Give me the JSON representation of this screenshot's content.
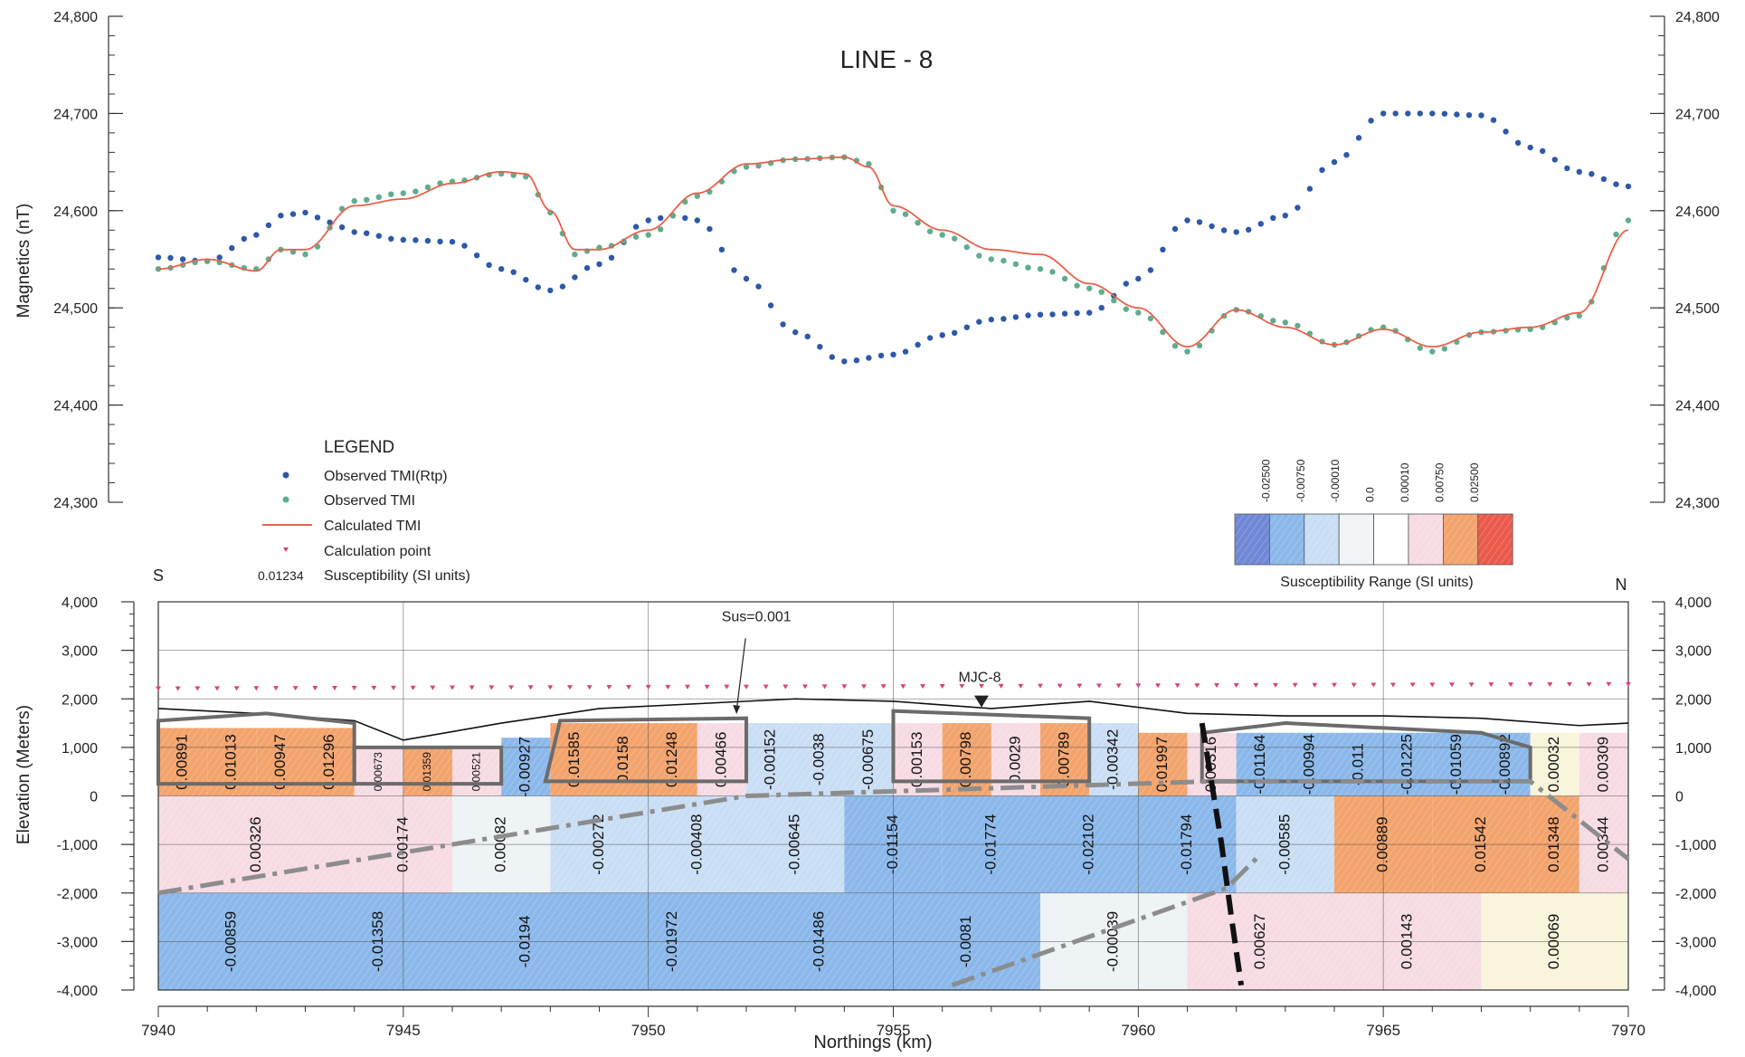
{
  "chart_data": [
    {
      "type": "line",
      "title": "LINE - 8",
      "ylabel": "Magnetics (nT)",
      "xlim": [
        7940,
        7970
      ],
      "ylim": [
        24300,
        24800
      ],
      "yticks": [
        24300,
        24400,
        24500,
        24600,
        24700,
        24800
      ],
      "ytick_labels": [
        "24,300",
        "24,400",
        "24,500",
        "24,600",
        "24,700",
        "24,800"
      ],
      "grid": false,
      "series": [
        {
          "name": "Observed TMI(Rtp)",
          "style": "points",
          "color": "#2e58a8",
          "x": [
            7940,
            7941,
            7942,
            7942.5,
            7943,
            7943.5,
            7944,
            7945,
            7946,
            7947,
            7948,
            7949,
            7950,
            7950.5,
            7951,
            7952,
            7953,
            7954,
            7955,
            7956,
            7957,
            7958,
            7959,
            7960,
            7961,
            7962,
            7963,
            7964,
            7965,
            7966,
            7967,
            7968,
            7969,
            7970
          ],
          "y": [
            24552,
            24548,
            24575,
            24595,
            24598,
            24588,
            24578,
            24570,
            24568,
            24540,
            24518,
            24545,
            24590,
            24595,
            24590,
            24530,
            24475,
            24445,
            24452,
            24472,
            24488,
            24493,
            24495,
            24530,
            24590,
            24578,
            24595,
            24650,
            24700,
            24700,
            24698,
            24665,
            24640,
            24625
          ]
        },
        {
          "name": "Observed TMI",
          "style": "points",
          "color": "#5fad8c",
          "x": [
            7940,
            7941,
            7942,
            7942.5,
            7943,
            7944,
            7945,
            7946,
            7947,
            7947.5,
            7948,
            7948.5,
            7949,
            7950,
            7951,
            7952,
            7953,
            7954,
            7954.5,
            7955,
            7956,
            7957,
            7958,
            7959,
            7960,
            7961,
            7962,
            7963,
            7964,
            7965,
            7966,
            7967,
            7968,
            7969,
            7970
          ],
          "y": [
            24540,
            24548,
            24540,
            24560,
            24555,
            24610,
            24618,
            24630,
            24638,
            24635,
            24598,
            24555,
            24562,
            24575,
            24615,
            24645,
            24653,
            24655,
            24648,
            24600,
            24575,
            24550,
            24540,
            24520,
            24495,
            24455,
            24498,
            24485,
            24462,
            24480,
            24455,
            24475,
            24478,
            24492,
            24590
          ]
        },
        {
          "name": "Calculated TMI",
          "style": "line",
          "color": "#e8614a",
          "x": [
            7940,
            7941,
            7942,
            7942.5,
            7943,
            7944,
            7945,
            7946,
            7947,
            7947.5,
            7948,
            7948.5,
            7949,
            7950,
            7951,
            7952,
            7953,
            7954,
            7954.5,
            7955,
            7956,
            7957,
            7958,
            7959,
            7960,
            7961,
            7962,
            7963,
            7964,
            7965,
            7966,
            7967,
            7968,
            7969,
            7970
          ],
          "y": [
            24540,
            24550,
            24538,
            24560,
            24560,
            24605,
            24612,
            24628,
            24640,
            24638,
            24600,
            24560,
            24560,
            24580,
            24618,
            24648,
            24653,
            24655,
            24645,
            24605,
            24580,
            24560,
            24555,
            24525,
            24500,
            24460,
            24498,
            24480,
            24462,
            24478,
            24460,
            24475,
            24480,
            24495,
            24580
          ]
        }
      ]
    },
    {
      "type": "heatmap",
      "ylabel": "Elevation (Meters)",
      "xlabel": "Northings (km)",
      "xlim": [
        7940,
        7970
      ],
      "ylim": [
        -4000,
        4000
      ],
      "xticks": [
        7940,
        7945,
        7950,
        7955,
        7960,
        7965,
        7970
      ],
      "yticks": [
        -4000,
        -3000,
        -2000,
        -1000,
        0,
        1000,
        2000,
        3000,
        4000
      ],
      "ytick_labels": [
        "-4,000",
        "-3,000",
        "-2,000",
        "-1,000",
        "0",
        "1,000",
        "2,000",
        "3,000",
        "4,000"
      ],
      "grid": true,
      "direction_labels": [
        "S",
        "N"
      ],
      "annotations": [
        "Sus=0.001",
        "MJC-8"
      ],
      "color_ranges": [
        {
          "label": "-0.02500",
          "color": "#6f88d6"
        },
        {
          "label": "-0.00750",
          "color": "#8bb8ea"
        },
        {
          "label": "-0.00010",
          "color": "#c9def5"
        },
        {
          "label": "0.0",
          "color": "#f1f4f6"
        },
        {
          "label": "0.00010",
          "color": "#ffffff"
        },
        {
          "label": "0.00750",
          "color": "#f7dbe3"
        },
        {
          "label": "0.02500",
          "color": "#f3a36c"
        },
        {
          "color": "#ea5a4b"
        }
      ],
      "color_range_title": "Susceptibility Range (SI units)",
      "blocks": [
        {
          "x0": 7940,
          "x1": 7944,
          "y0": 0,
          "y1": -2000,
          "value": "0.00326",
          "color": "#f7dbe3"
        },
        {
          "x0": 7944,
          "x1": 7946,
          "y0": 0,
          "y1": -2000,
          "value": "0.00174",
          "color": "#f7dbe3"
        },
        {
          "x0": 7946,
          "x1": 7948,
          "y0": 0,
          "y1": -2000,
          "value": "0.00082",
          "color": "#eef3f5"
        },
        {
          "x0": 7948,
          "x1": 7950,
          "y0": 0,
          "y1": -2000,
          "value": "-0.00272",
          "color": "#c9def5"
        },
        {
          "x0": 7950,
          "x1": 7952,
          "y0": 0,
          "y1": -2000,
          "value": "-0.00408",
          "color": "#c9def5"
        },
        {
          "x0": 7952,
          "x1": 7954,
          "y0": 0,
          "y1": -2000,
          "value": "-0.00645",
          "color": "#c9def5"
        },
        {
          "x0": 7954,
          "x1": 7956,
          "y0": 0,
          "y1": -2000,
          "value": "-0.01154",
          "color": "#8bb8ea"
        },
        {
          "x0": 7956,
          "x1": 7958,
          "y0": 0,
          "y1": -2000,
          "value": "-0.01774",
          "color": "#8bb8ea"
        },
        {
          "x0": 7958,
          "x1": 7960,
          "y0": 0,
          "y1": -2000,
          "value": "-0.02102",
          "color": "#8bb8ea"
        },
        {
          "x0": 7960,
          "x1": 7962,
          "y0": 0,
          "y1": -2000,
          "value": "-0.01794",
          "color": "#8bb8ea"
        },
        {
          "x0": 7962,
          "x1": 7964,
          "y0": 0,
          "y1": -2000,
          "value": "-0.00585",
          "color": "#c9def5"
        },
        {
          "x0": 7964,
          "x1": 7966,
          "y0": 0,
          "y1": -2000,
          "value": "0.00889",
          "color": "#f3a36c"
        },
        {
          "x0": 7966,
          "x1": 7968,
          "y0": 0,
          "y1": -2000,
          "value": "0.01542",
          "color": "#f3a36c"
        },
        {
          "x0": 7968,
          "x1": 7969,
          "y0": 0,
          "y1": -2000,
          "value": "0.01348",
          "color": "#f3a36c"
        },
        {
          "x0": 7969,
          "x1": 7970,
          "y0": 0,
          "y1": -2000,
          "value": "0.00344",
          "color": "#f7dbe3"
        },
        {
          "x0": 7940,
          "x1": 7943,
          "y0": -2000,
          "y1": -4000,
          "value": "-0.00859",
          "color": "#8bb8ea"
        },
        {
          "x0": 7943,
          "x1": 7946,
          "y0": -2000,
          "y1": -4000,
          "value": "-0.01358",
          "color": "#8bb8ea"
        },
        {
          "x0": 7946,
          "x1": 7949,
          "y0": -2000,
          "y1": -4000,
          "value": "-0.0194",
          "color": "#8bb8ea"
        },
        {
          "x0": 7949,
          "x1": 7952,
          "y0": -2000,
          "y1": -4000,
          "value": "-0.01972",
          "color": "#8bb8ea"
        },
        {
          "x0": 7952,
          "x1": 7955,
          "y0": -2000,
          "y1": -4000,
          "value": "-0.01486",
          "color": "#8bb8ea"
        },
        {
          "x0": 7955,
          "x1": 7958,
          "y0": -2000,
          "y1": -4000,
          "value": "-0.0081",
          "color": "#8bb8ea"
        },
        {
          "x0": 7958,
          "x1": 7961,
          "y0": -2000,
          "y1": -4000,
          "value": "-0.00039",
          "color": "#eef3f5"
        },
        {
          "x0": 7961,
          "x1": 7964,
          "y0": -2000,
          "y1": -4000,
          "value": "0.00627",
          "color": "#f7dbe3"
        },
        {
          "x0": 7964,
          "x1": 7967,
          "y0": -2000,
          "y1": -4000,
          "value": "0.00143",
          "color": "#f7dbe3"
        },
        {
          "x0": 7967,
          "x1": 7970,
          "y0": -2000,
          "y1": -4000,
          "value": "0.00069",
          "color": "#f8f5dc"
        },
        {
          "x0": 7940,
          "x1": 7941,
          "y0": 1400,
          "y1": 0,
          "value": "0.00891",
          "color": "#f3a36c"
        },
        {
          "x0": 7941,
          "x1": 7942,
          "y0": 1400,
          "y1": 0,
          "value": "0.01013",
          "color": "#f3a36c"
        },
        {
          "x0": 7942,
          "x1": 7943,
          "y0": 1400,
          "y1": 0,
          "value": "0.00947",
          "color": "#f3a36c"
        },
        {
          "x0": 7943,
          "x1": 7944,
          "y0": 1400,
          "y1": 0,
          "value": "0.01296",
          "color": "#f3a36c"
        },
        {
          "x0": 7944,
          "x1": 7945,
          "y0": 1000,
          "y1": 0,
          "value": "0.00673",
          "color": "#f7dbe3"
        },
        {
          "x0": 7945,
          "x1": 7946,
          "y0": 1000,
          "y1": 0,
          "value": "0.01359",
          "color": "#f3a36c"
        },
        {
          "x0": 7946,
          "x1": 7947,
          "y0": 1000,
          "y1": 0,
          "value": "0.00521",
          "color": "#f7dbe3"
        },
        {
          "x0": 7947,
          "x1": 7948,
          "y0": 1200,
          "y1": 0,
          "value": "-0.00927",
          "color": "#8bb8ea"
        },
        {
          "x0": 7948,
          "x1": 7949,
          "y0": 1500,
          "y1": 0,
          "value": "0.01585",
          "color": "#f3a36c"
        },
        {
          "x0": 7949,
          "x1": 7950,
          "y0": 1500,
          "y1": 0,
          "value": "0.0158",
          "color": "#f3a36c"
        },
        {
          "x0": 7950,
          "x1": 7951,
          "y0": 1500,
          "y1": 0,
          "value": "0.01248",
          "color": "#f3a36c"
        },
        {
          "x0": 7951,
          "x1": 7952,
          "y0": 1500,
          "y1": 0,
          "value": "0.00466",
          "color": "#f7dbe3"
        },
        {
          "x0": 7952,
          "x1": 7953,
          "y0": 1500,
          "y1": 0,
          "value": "-0.00152",
          "color": "#c9def5"
        },
        {
          "x0": 7953,
          "x1": 7954,
          "y0": 1500,
          "y1": 0,
          "value": "-0.0038",
          "color": "#c9def5"
        },
        {
          "x0": 7954,
          "x1": 7955,
          "y0": 1500,
          "y1": 0,
          "value": "-0.00675",
          "color": "#c9def5"
        },
        {
          "x0": 7955,
          "x1": 7956,
          "y0": 1500,
          "y1": 0,
          "value": "0.00153",
          "color": "#f7dbe3"
        },
        {
          "x0": 7956,
          "x1": 7957,
          "y0": 1500,
          "y1": 0,
          "value": "0.00798",
          "color": "#f3a36c"
        },
        {
          "x0": 7957,
          "x1": 7958,
          "y0": 1500,
          "y1": 0,
          "value": "0.0029",
          "color": "#f7dbe3"
        },
        {
          "x0": 7958,
          "x1": 7959,
          "y0": 1500,
          "y1": 0,
          "value": "0.00789",
          "color": "#f3a36c"
        },
        {
          "x0": 7959,
          "x1": 7960,
          "y0": 1500,
          "y1": 0,
          "value": "-0.00342",
          "color": "#c9def5"
        },
        {
          "x0": 7960,
          "x1": 7961,
          "y0": 1300,
          "y1": 0,
          "value": "0.01997",
          "color": "#f3a36c"
        },
        {
          "x0": 7961,
          "x1": 7962,
          "y0": 1300,
          "y1": 0,
          "value": "0.00316",
          "color": "#f7dbe3"
        },
        {
          "x0": 7962,
          "x1": 7963,
          "y0": 1300,
          "y1": 0,
          "value": "-0.01164",
          "color": "#8bb8ea"
        },
        {
          "x0": 7963,
          "x1": 7964,
          "y0": 1300,
          "y1": 0,
          "value": "-0.00994",
          "color": "#8bb8ea"
        },
        {
          "x0": 7964,
          "x1": 7965,
          "y0": 1300,
          "y1": 0,
          "value": "-0.011",
          "color": "#8bb8ea"
        },
        {
          "x0": 7965,
          "x1": 7966,
          "y0": 1300,
          "y1": 0,
          "value": "-0.01225",
          "color": "#8bb8ea"
        },
        {
          "x0": 7966,
          "x1": 7967,
          "y0": 1300,
          "y1": 0,
          "value": "-0.01059",
          "color": "#8bb8ea"
        },
        {
          "x0": 7967,
          "x1": 7968,
          "y0": 1300,
          "y1": 0,
          "value": "-0.00892",
          "color": "#8bb8ea"
        },
        {
          "x0": 7968,
          "x1": 7969,
          "y0": 1300,
          "y1": 0,
          "value": "0.00032",
          "color": "#f8f5dc"
        },
        {
          "x0": 7969,
          "x1": 7970,
          "y0": 1300,
          "y1": 0,
          "value": "0.00309",
          "color": "#f7dbe3"
        }
      ]
    }
  ],
  "legend": {
    "title": "LEGEND",
    "items": [
      {
        "label": "Observed TMI(Rtp)"
      },
      {
        "label": "Observed TMI"
      },
      {
        "label": "Calculated TMI"
      },
      {
        "label": "Calculation point"
      },
      {
        "sample": "0.01234",
        "label": "Susceptibility (SI units)"
      }
    ]
  },
  "colors": {
    "rtp": "#2e58a8",
    "tmi": "#5fad8c",
    "calc": "#e8614a",
    "calc_point": "#d6447e"
  }
}
